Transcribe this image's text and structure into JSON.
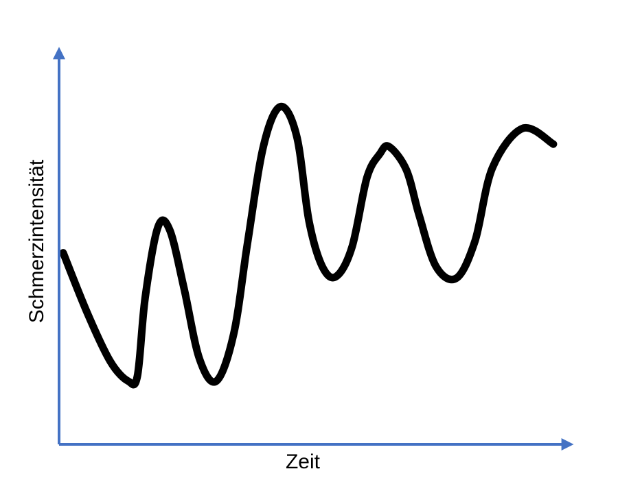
{
  "chart_data": {
    "type": "line",
    "title": "",
    "xlabel": "Zeit",
    "ylabel": "Schmerzintensität",
    "show_ticks": false,
    "grid": false,
    "legend": "none",
    "xlim": [
      0,
      100
    ],
    "ylim": [
      0,
      100
    ],
    "series": [
      {
        "color": "#000000",
        "x": [
          0.8,
          5.6,
          10,
          13.5,
          15.3,
          16.8,
          19.3,
          21.6,
          24.4,
          27.4,
          30.7,
          34.1,
          36.8,
          39.9,
          43.2,
          46.4,
          48.8,
          51.4,
          54.1,
          57.2,
          60.1,
          62.6,
          64.4,
          67.8,
          70.3,
          73.6,
          77.6,
          81.2,
          84.6,
          90.5,
          96.5
        ],
        "y": [
          48.5,
          33,
          21,
          16,
          17.3,
          37,
          55,
          54.3,
          39.5,
          21.7,
          16,
          28,
          51,
          75.5,
          85.5,
          78,
          56.5,
          45,
          42.5,
          50,
          67.5,
          73.5,
          75.4,
          69.5,
          58,
          45,
          42.1,
          51.5,
          70,
          80,
          76
        ]
      }
    ]
  },
  "colors": {
    "axis": "#4472C4",
    "line": "#000000"
  }
}
